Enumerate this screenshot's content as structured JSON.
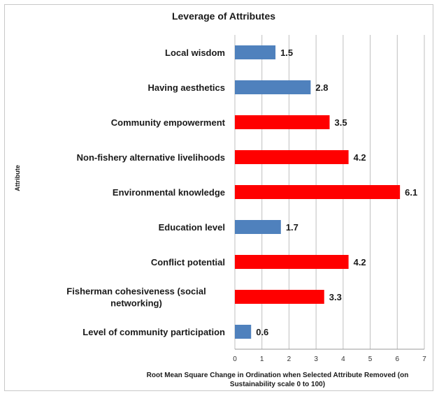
{
  "chart_data": {
    "type": "bar",
    "orientation": "horizontal",
    "title": "Leverage of Attributes",
    "ylabel": "Attribute",
    "xlabel_lines": [
      "Root Mean Square Change in Ordination when Selected Attribute Removed (on",
      "Sustainability scale 0 to 100)"
    ],
    "xlim": [
      0,
      7
    ],
    "xticks": [
      0,
      1,
      2,
      3,
      4,
      5,
      6,
      7
    ],
    "grid": true,
    "categories": [
      [
        "Local wisdom"
      ],
      [
        "Having aesthetics"
      ],
      [
        "Community empowerment"
      ],
      [
        "Non-fishery  alternative livelihoods"
      ],
      [
        "Environmental knowledge"
      ],
      [
        "Education level"
      ],
      [
        "Conflict potential"
      ],
      [
        "Fisherman cohesiveness (social",
        "networking)"
      ],
      [
        "Level of community participation"
      ]
    ],
    "values": [
      1.5,
      2.8,
      3.5,
      4.2,
      6.1,
      1.7,
      4.2,
      3.3,
      0.6
    ],
    "value_labels": [
      "1.5",
      "2.8",
      "3.5",
      "4.2",
      "6.1",
      "1.7",
      "4.2",
      "3.3",
      "0.6"
    ],
    "bar_colors": [
      "#4f81bd",
      "#4f81bd",
      "#ff0000",
      "#ff0000",
      "#ff0000",
      "#4f81bd",
      "#ff0000",
      "#ff0000",
      "#4f81bd"
    ]
  }
}
